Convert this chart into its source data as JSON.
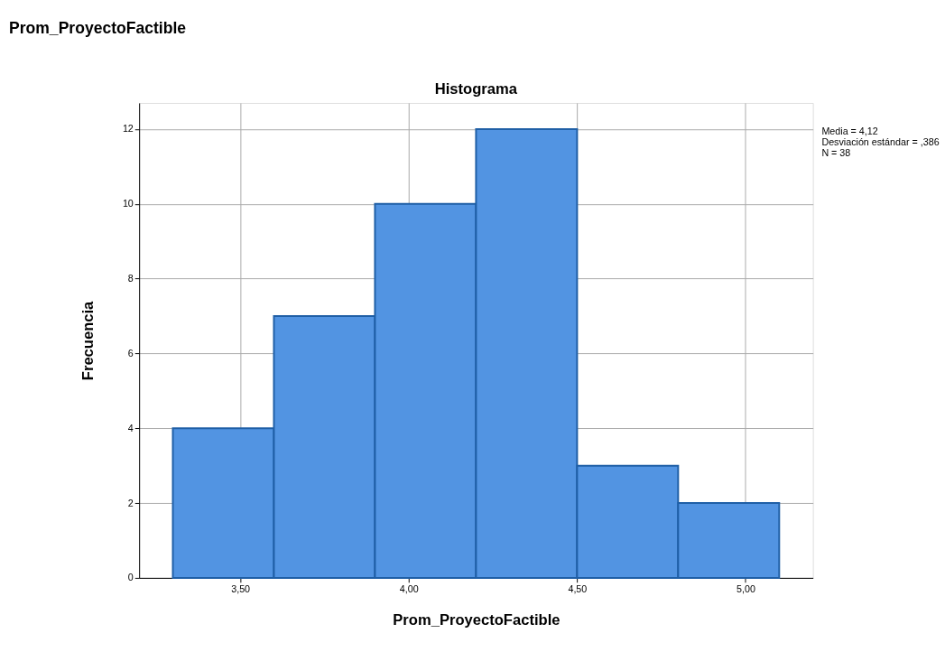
{
  "chart_data": {
    "type": "histogram",
    "title": "Prom_ProyectoFactible",
    "subtitle": "Histograma",
    "xlabel": "Prom_ProyectoFactible",
    "ylabel": "Frecuencia",
    "bins": [
      3.3,
      3.6,
      3.9,
      4.2,
      4.5,
      4.8,
      5.1
    ],
    "values": [
      4,
      7,
      10,
      12,
      3,
      2
    ],
    "color": "#5294e2",
    "xlim": [
      3.2,
      5.2
    ],
    "ylim": [
      0,
      12.7
    ],
    "xticks": [
      {
        "value": 3.5,
        "label": "3,50"
      },
      {
        "value": 4.0,
        "label": "4,00"
      },
      {
        "value": 4.5,
        "label": "4,50"
      },
      {
        "value": 5.0,
        "label": "5,00"
      }
    ],
    "yticks": [
      0,
      2,
      4,
      6,
      8,
      10,
      12
    ],
    "grid": true,
    "annotations": [
      "Media = 4,12",
      "Desviación estándar = ,386",
      "N = 38"
    ]
  }
}
